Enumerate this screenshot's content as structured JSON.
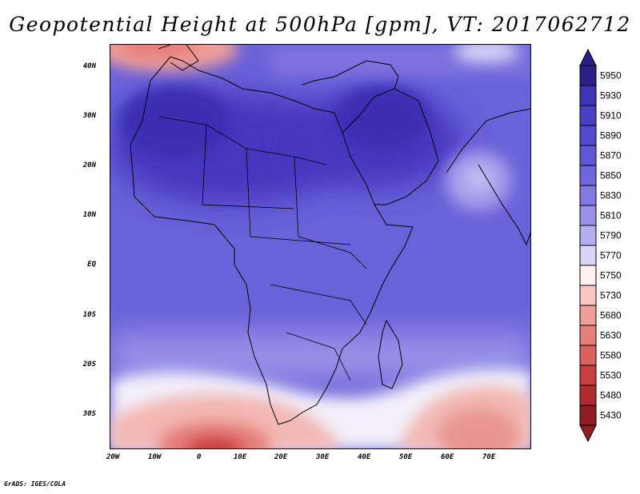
{
  "title": "Geopotential Height at 500hPa [gpm], VT: 2017062712",
  "credit": "GrADS: IGES/COLA",
  "lat_labels": [
    "40N",
    "30N",
    "20N",
    "10N",
    "EQ",
    "10S",
    "20S",
    "30S"
  ],
  "lon_labels": [
    "20W",
    "10W",
    "0",
    "10E",
    "20E",
    "30E",
    "40E",
    "50E",
    "60E",
    "70E"
  ],
  "map_data": {
    "variable": "Geopotential Height",
    "level": "500hPa",
    "units": "gpm",
    "valid_time": "2017062712",
    "lon_range": [
      -22,
      80
    ],
    "lat_range": [
      -36,
      45
    ],
    "features": [
      {
        "label": "heat-ridge-sahara-arabia",
        "approx_value": 5920
      },
      {
        "label": "trough-south-atlantic",
        "approx_value": 5640
      },
      {
        "label": "trough-south-indian-ocean",
        "approx_value": 5700
      },
      {
        "label": "trough-iberia-west-mediterranean",
        "approx_value": 5740
      },
      {
        "label": "cutoff-low-arabian-sea",
        "approx_value": 5830
      }
    ]
  },
  "colorbar": {
    "labels": [
      "5950",
      "5930",
      "5910",
      "5890",
      "5870",
      "5850",
      "5830",
      "5810",
      "5790",
      "5770",
      "5750",
      "5730",
      "5680",
      "5630",
      "5580",
      "5530",
      "5480",
      "5430"
    ],
    "colors": [
      "#2b208a",
      "#3f33b5",
      "#4a3ec4",
      "#5549cf",
      "#6157d6",
      "#6f66dc",
      "#8279e2",
      "#9892e8",
      "#b3aeef",
      "#d8d6f7",
      "#fff2f0",
      "#f8c8c4",
      "#f09e99",
      "#e57d78",
      "#d9605d",
      "#c93f40",
      "#b02b2e",
      "#8f1e22"
    ]
  }
}
